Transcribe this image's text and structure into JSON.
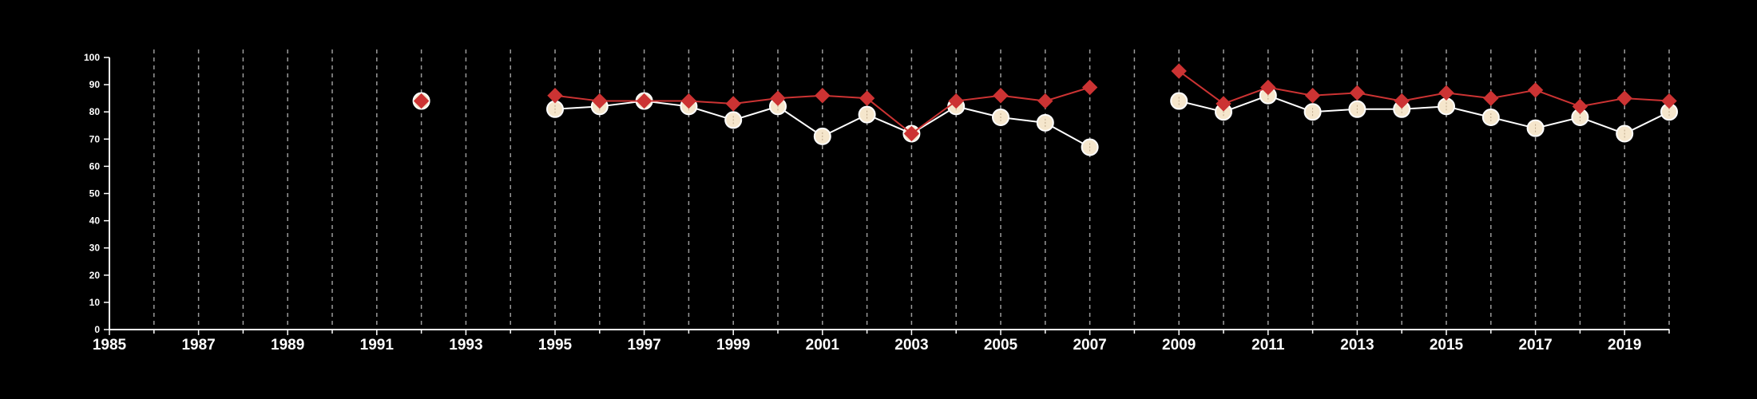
{
  "chart_data": {
    "type": "line",
    "title": "",
    "xlabel": "",
    "ylabel": "",
    "xlim": [
      1985,
      2020
    ],
    "ylim": [
      0,
      100
    ],
    "x_ticks": [
      1985,
      1987,
      1989,
      1991,
      1993,
      1995,
      1997,
      1999,
      2001,
      2003,
      2005,
      2007,
      2009,
      2011,
      2013,
      2015,
      2017,
      2019
    ],
    "y_ticks": [
      0,
      10,
      20,
      30,
      40,
      50,
      60,
      70,
      80,
      90,
      100
    ],
    "vertical_grid": true,
    "horizontal_grid": false,
    "legend": "none",
    "series": [
      {
        "marker": "circle",
        "color": "#ffffff",
        "fill": "#f5e6cc",
        "points": [
          [
            1992,
            84
          ],
          [
            1995,
            81
          ],
          [
            1996,
            82
          ],
          [
            1997,
            84
          ],
          [
            1998,
            82
          ],
          [
            1999,
            77
          ],
          [
            2000,
            82
          ],
          [
            2001,
            71
          ],
          [
            2002,
            79
          ],
          [
            2003,
            72
          ],
          [
            2004,
            82
          ],
          [
            2005,
            78
          ],
          [
            2006,
            76
          ],
          [
            2007,
            67
          ],
          [
            2009,
            84
          ],
          [
            2010,
            80
          ],
          [
            2011,
            86
          ],
          [
            2012,
            80
          ],
          [
            2013,
            81
          ],
          [
            2014,
            81
          ],
          [
            2015,
            82
          ],
          [
            2016,
            78
          ],
          [
            2017,
            74
          ],
          [
            2018,
            78
          ],
          [
            2019,
            72
          ],
          [
            2020,
            80
          ]
        ]
      },
      {
        "marker": "diamond",
        "color": "#cc3333",
        "fill": "#cc3333",
        "points": [
          [
            1992,
            84
          ],
          [
            1995,
            86
          ],
          [
            1996,
            84
          ],
          [
            1997,
            84
          ],
          [
            1998,
            84
          ],
          [
            1999,
            83
          ],
          [
            2000,
            85
          ],
          [
            2001,
            86
          ],
          [
            2002,
            85
          ],
          [
            2003,
            72
          ],
          [
            2004,
            84
          ],
          [
            2005,
            86
          ],
          [
            2006,
            84
          ],
          [
            2007,
            89
          ],
          [
            2009,
            95
          ],
          [
            2010,
            83
          ],
          [
            2011,
            89
          ],
          [
            2012,
            86
          ],
          [
            2013,
            87
          ],
          [
            2014,
            84
          ],
          [
            2015,
            87
          ],
          [
            2016,
            85
          ],
          [
            2017,
            88
          ],
          [
            2018,
            82
          ],
          [
            2019,
            85
          ],
          [
            2020,
            84
          ]
        ]
      }
    ]
  }
}
